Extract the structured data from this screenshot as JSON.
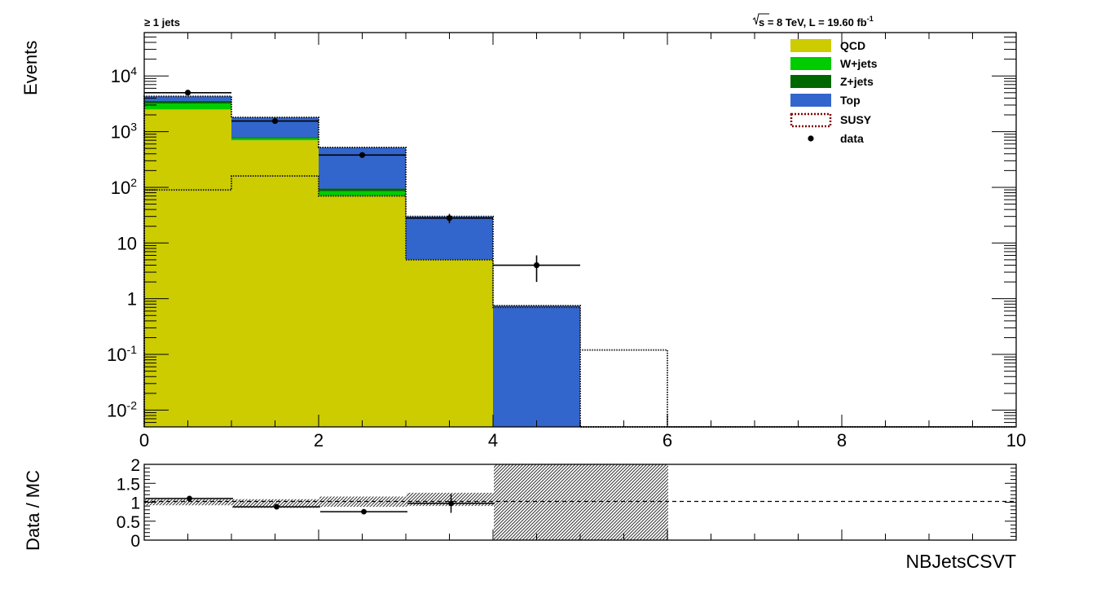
{
  "chart_data": [
    {
      "type": "bar",
      "title_left": "≥ 1 jets",
      "title_right": {
        "prefix": "s",
        "main": " = 8 TeV, L = 19.60 fb",
        "sup": "-1"
      },
      "ylabel": "Events",
      "xlabel": "",
      "xlim": [
        0,
        10
      ],
      "ylim": [
        0.005,
        60000
      ],
      "yscale": "log",
      "x_tick_labels": [
        "0",
        "2",
        "4",
        "6",
        "8",
        "10"
      ],
      "y_tick_labels": [
        {
          "base": "10",
          "sup": "-2"
        },
        {
          "base": "10",
          "sup": "-1"
        },
        {
          "base": "1",
          "sup": ""
        },
        {
          "base": "10",
          "sup": ""
        },
        {
          "base": "10",
          "sup": "2"
        },
        {
          "base": "10",
          "sup": "3"
        },
        {
          "base": "10",
          "sup": "4"
        }
      ],
      "bin_edges": [
        0,
        1,
        2,
        3,
        4,
        5,
        6,
        7,
        8,
        9,
        10
      ],
      "stacked": true,
      "series": [
        {
          "name": "QCD",
          "color": "#cccc00",
          "values": [
            2500,
            700,
            70,
            5,
            0,
            0,
            0,
            0,
            0,
            0
          ]
        },
        {
          "name": "W+jets",
          "color": "#00cc00",
          "values": [
            700,
            60,
            15,
            0,
            0,
            0,
            0,
            0,
            0,
            0
          ]
        },
        {
          "name": "Z+jets",
          "color": "#006600",
          "values": [
            350,
            40,
            10,
            0,
            0,
            0,
            0,
            0,
            0,
            0
          ]
        },
        {
          "name": "Top",
          "color": "#3366cc",
          "values": [
            750,
            1000,
            425,
            25,
            0.75,
            0,
            0,
            0,
            0,
            0
          ]
        }
      ],
      "overlay": {
        "name": "SUSY",
        "color": "#800000",
        "style": "dotted",
        "values": [
          90,
          160,
          70,
          5,
          0.7,
          0.12,
          0,
          0,
          0,
          0
        ]
      },
      "data": {
        "name": "data",
        "x": [
          0.5,
          1.5,
          2.5,
          3.5,
          4.5
        ],
        "y": [
          5000,
          1550,
          380,
          28,
          4
        ],
        "yerr": [
          70,
          40,
          20,
          5.3,
          2
        ]
      },
      "legend": {
        "placement": "top-right",
        "entries": [
          "QCD",
          "W+jets",
          "Z+jets",
          "Top",
          "SUSY",
          "data"
        ]
      }
    },
    {
      "type": "scatter",
      "ylabel": "Data / MC",
      "xlabel": "NBJetsCSVT",
      "xlim": [
        0,
        10
      ],
      "ylim": [
        0,
        2
      ],
      "y_tick_labels": [
        "0",
        "0.5",
        "1",
        "1.5",
        "2"
      ],
      "reference_line": 1,
      "ratio": {
        "x": [
          0.5,
          1.5,
          2.5,
          3.5
        ],
        "y": [
          1.1,
          0.88,
          0.75,
          0.97
        ],
        "yerr": [
          0.03,
          0.03,
          0.04,
          0.25
        ]
      },
      "uncertainty_band": {
        "bin_edges": [
          0,
          1,
          2,
          3,
          4,
          5,
          6
        ],
        "low": [
          0.92,
          0.85,
          0.88,
          0.9,
          0,
          0
        ],
        "high": [
          1.08,
          1.08,
          1.15,
          1.25,
          2,
          2
        ]
      }
    }
  ]
}
